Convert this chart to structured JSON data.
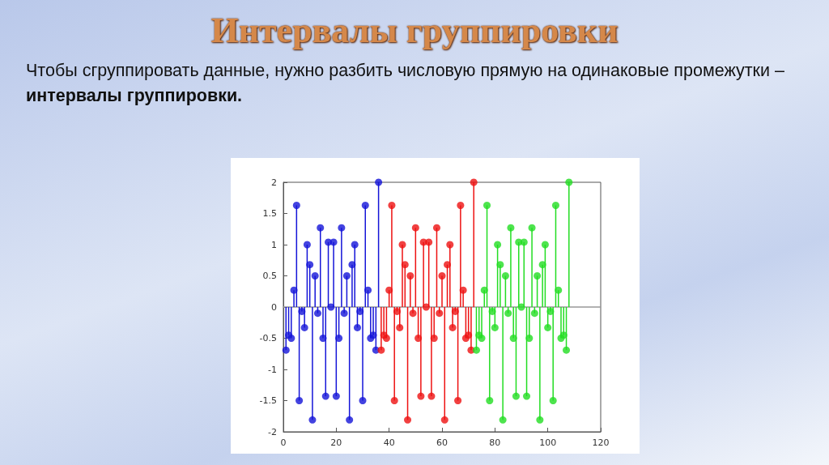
{
  "chart_data": {
    "type": "lollipop",
    "title": "Интервалы группировки",
    "subtitle": "Чтобы сгруппировать данные, нужно разбить числовую прямую на одинаковые промежутки –",
    "annotations": [
      "интервалы группировки."
    ],
    "series": [
      {
        "color": "#1414d8",
        "x": [
          1,
          2,
          3,
          4,
          5,
          6,
          7,
          8,
          9,
          10,
          11,
          12,
          13,
          14,
          15,
          16,
          17,
          18,
          19,
          20,
          21,
          22,
          23,
          24,
          25,
          26,
          27,
          28,
          29,
          30,
          31,
          32,
          33,
          34,
          35,
          36
        ],
        "values": [
          -0.69,
          -0.45,
          -0.5,
          0.27,
          1.63,
          -1.5,
          -0.07,
          -0.33,
          1.0,
          0.68,
          -1.81,
          0.5,
          -0.1,
          1.27,
          -0.5,
          -1.43,
          1.04,
          0,
          1.04,
          -1.43,
          -0.5,
          1.27,
          -0.1,
          0.5,
          -1.81,
          0.68,
          1.0,
          -0.33,
          -0.07,
          -1.5,
          1.63,
          0.27,
          -0.5,
          -0.45,
          -0.69,
          2.0
        ]
      },
      {
        "color": "#ee1111",
        "x": [
          37,
          38,
          39,
          40,
          41,
          42,
          43,
          44,
          45,
          46,
          47,
          48,
          49,
          50,
          51,
          52,
          53,
          54,
          55,
          56,
          57,
          58,
          59,
          60,
          61,
          62,
          63,
          64,
          65,
          66,
          67,
          68,
          69,
          70,
          71,
          72
        ],
        "values": [
          -0.69,
          -0.45,
          -0.5,
          0.27,
          1.63,
          -1.5,
          -0.07,
          -0.33,
          1.0,
          0.68,
          -1.81,
          0.5,
          -0.1,
          1.27,
          -0.5,
          -1.43,
          1.04,
          0,
          1.04,
          -1.43,
          -0.5,
          1.27,
          -0.1,
          0.5,
          -1.81,
          0.68,
          1.0,
          -0.33,
          -0.07,
          -1.5,
          1.63,
          0.27,
          -0.5,
          -0.45,
          -0.69,
          2.0
        ]
      },
      {
        "color": "#22dd22",
        "x": [
          73,
          74,
          75,
          76,
          77,
          78,
          79,
          80,
          81,
          82,
          83,
          84,
          85,
          86,
          87,
          88,
          89,
          90,
          91,
          92,
          93,
          94,
          95,
          96,
          97,
          98,
          99,
          100,
          101,
          102,
          103,
          104,
          105,
          106,
          107,
          108
        ],
        "values": [
          -0.69,
          -0.45,
          -0.5,
          0.27,
          1.63,
          -1.5,
          -0.07,
          -0.33,
          1.0,
          0.68,
          -1.81,
          0.5,
          -0.1,
          1.27,
          -0.5,
          -1.43,
          1.04,
          0,
          1.04,
          -1.43,
          -0.5,
          1.27,
          -0.1,
          0.5,
          -1.81,
          0.68,
          1.0,
          -0.33,
          -0.07,
          -1.5,
          1.63,
          0.27,
          -0.5,
          -0.45,
          -0.69,
          2.0
        ]
      }
    ],
    "xlim": [
      0,
      120
    ],
    "xticks": [
      0,
      20,
      40,
      60,
      80,
      100,
      120
    ],
    "ylim": [
      -2,
      2
    ],
    "yticks": [
      -2,
      -1.5,
      -1,
      -0.5,
      0,
      0.5,
      1,
      1.5,
      2
    ],
    "ref_lines": [
      {
        "axis": "y",
        "value": 0,
        "color": "#999999"
      }
    ],
    "marker": "circle",
    "grid": false
  }
}
